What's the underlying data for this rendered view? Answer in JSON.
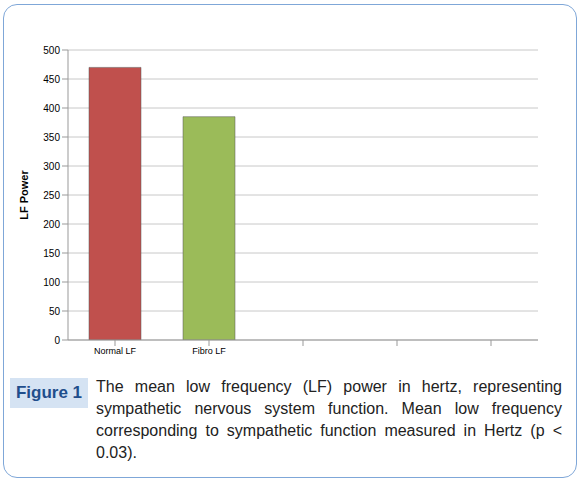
{
  "chart_data": {
    "type": "bar",
    "categories": [
      "Normal LF",
      "Fibro LF",
      null,
      null,
      null
    ],
    "values": [
      470,
      385,
      null,
      null,
      null
    ],
    "colors": [
      "#c0504d",
      "#9bbb59"
    ],
    "ylim": [
      0,
      500
    ],
    "yticks": [
      0,
      50,
      100,
      150,
      200,
      250,
      300,
      350,
      400,
      450,
      500
    ],
    "grid": true,
    "y_label": "LF Power"
  },
  "caption": {
    "label": "Figure 1",
    "text": "The mean low frequency (LF) power in hertz, representing sympathetic nervous system function. Mean low frequency corresponding to sympathetic function measured in Hertz (p < 0.03)."
  }
}
